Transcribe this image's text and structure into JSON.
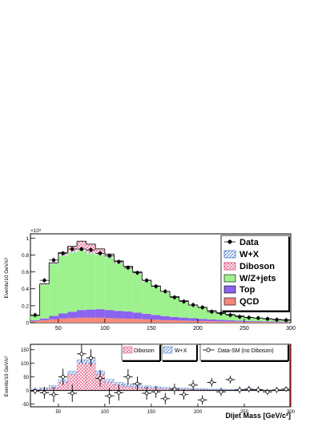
{
  "chart_data": [
    {
      "type": "bar",
      "stacked": true,
      "title": "",
      "xlabel": "",
      "ylabel": "Events/10 GeV/c²",
      "y_multiplier": "×10³",
      "xlim": [
        20,
        300
      ],
      "ylim": [
        0,
        1.05
      ],
      "x_ticks": [
        50,
        100,
        150,
        200,
        250,
        300
      ],
      "y_ticks": [
        0,
        0.2,
        0.4,
        0.6,
        0.8,
        1
      ],
      "y_tick_labels": [
        "0",
        "0.2",
        "0.4",
        "0.6",
        "0.8",
        "1"
      ],
      "bin_width": 10,
      "bin_centers": [
        25,
        35,
        45,
        55,
        65,
        75,
        85,
        95,
        105,
        115,
        125,
        135,
        145,
        155,
        165,
        175,
        185,
        195,
        205,
        215,
        225,
        235,
        245,
        255,
        265,
        275,
        285,
        295
      ],
      "series": [
        {
          "name": "QCD",
          "color": "#f5897a",
          "values": [
            0.02,
            0.03,
            0.04,
            0.05,
            0.055,
            0.06,
            0.06,
            0.06,
            0.055,
            0.05,
            0.048,
            0.045,
            0.04,
            0.035,
            0.03,
            0.028,
            0.025,
            0.022,
            0.02,
            0.018,
            0.015,
            0.013,
            0.012,
            0.01,
            0.009,
            0.008,
            0.007,
            0.006
          ]
        },
        {
          "name": "Top",
          "color": "#8a63ee",
          "values": [
            0.01,
            0.02,
            0.04,
            0.06,
            0.075,
            0.09,
            0.095,
            0.1,
            0.095,
            0.09,
            0.085,
            0.075,
            0.065,
            0.055,
            0.048,
            0.04,
            0.035,
            0.03,
            0.025,
            0.02,
            0.018,
            0.015,
            0.012,
            0.01,
            0.009,
            0.008,
            0.007,
            0.006
          ]
        },
        {
          "name": "W/Z+jets",
          "color": "#9df28d",
          "values": [
            0.05,
            0.4,
            0.61,
            0.68,
            0.7,
            0.7,
            0.66,
            0.64,
            0.62,
            0.56,
            0.51,
            0.46,
            0.38,
            0.33,
            0.28,
            0.23,
            0.19,
            0.15,
            0.13,
            0.1,
            0.08,
            0.065,
            0.052,
            0.04,
            0.035,
            0.03,
            0.024,
            0.02
          ]
        },
        {
          "name": "W+X",
          "color": "#4477cc",
          "pattern": "hatch-blue",
          "values": [
            0.003,
            0.005,
            0.008,
            0.01,
            0.012,
            0.013,
            0.013,
            0.012,
            0.011,
            0.01,
            0.009,
            0.008,
            0.007,
            0.006,
            0.005,
            0.004,
            0.004,
            0.003,
            0.003,
            0.002,
            0.002,
            0.002,
            0.002,
            0.001,
            0.001,
            0.001,
            0.001,
            0.001
          ]
        },
        {
          "name": "Diboson",
          "color": "#f7b3c4",
          "pattern": "dots-pink",
          "values": [
            0.002,
            0.005,
            0.01,
            0.03,
            0.06,
            0.1,
            0.1,
            0.06,
            0.03,
            0.02,
            0.015,
            0.012,
            0.01,
            0.008,
            0.007,
            0.006,
            0.005,
            0.004,
            0.004,
            0.003,
            0.003,
            0.002,
            0.002,
            0.002,
            0.001,
            0.001,
            0.001,
            0.001
          ]
        }
      ],
      "data": {
        "name": "Data",
        "x": [
          25,
          35,
          45,
          55,
          65,
          75,
          85,
          95,
          105,
          115,
          125,
          135,
          145,
          155,
          165,
          175,
          185,
          195,
          205,
          215,
          225,
          235,
          245,
          255,
          265,
          275,
          285,
          295
        ],
        "y": [
          0.09,
          0.5,
          0.74,
          0.82,
          0.87,
          0.87,
          0.86,
          0.82,
          0.79,
          0.72,
          0.65,
          0.59,
          0.5,
          0.43,
          0.37,
          0.3,
          0.25,
          0.21,
          0.18,
          0.13,
          0.11,
          0.09,
          0.07,
          0.06,
          0.055,
          0.045,
          0.035,
          0.03
        ]
      },
      "legend": {
        "placement": "top-right",
        "entries": [
          "Data",
          "W+X",
          "Diboson",
          "W/Z+jets",
          "Top",
          "QCD"
        ]
      },
      "grid": false
    },
    {
      "type": "bar",
      "title": "",
      "xlabel": "Dijet Mass [GeV/c²]",
      "ylabel": "Events/10 GeV/c²",
      "xlim": [
        20,
        300
      ],
      "ylim": [
        -60,
        170
      ],
      "x_ticks": [
        50,
        100,
        150,
        200,
        250,
        300
      ],
      "y_ticks": [
        -50,
        0,
        50,
        100,
        150
      ],
      "bin_width": 10,
      "bin_centers": [
        25,
        35,
        45,
        55,
        65,
        75,
        85,
        95,
        105,
        115,
        125,
        135,
        145,
        155,
        165,
        175,
        185,
        195,
        205,
        215,
        225,
        235,
        245,
        255,
        265,
        275,
        285,
        295
      ],
      "series": [
        {
          "name": "Diboson",
          "color": "#e8789a",
          "pattern": "dots-pink",
          "values": [
            2,
            5,
            10,
            30,
            60,
            100,
            100,
            60,
            30,
            20,
            15,
            12,
            10,
            8,
            7,
            6,
            5,
            4,
            4,
            3,
            3,
            2,
            2,
            2,
            1,
            1,
            1,
            1
          ]
        },
        {
          "name": "W+X",
          "color": "#4477cc",
          "pattern": "hatch-blue",
          "values": [
            3,
            5,
            8,
            10,
            12,
            13,
            13,
            12,
            11,
            10,
            9,
            8,
            7,
            6,
            5,
            4,
            4,
            3,
            3,
            2,
            2,
            2,
            2,
            1,
            1,
            1,
            1,
            1
          ]
        }
      ],
      "data": {
        "name": "Data-SM (no Diboson)",
        "x": [
          25,
          35,
          45,
          55,
          65,
          75,
          85,
          95,
          105,
          115,
          125,
          135,
          145,
          155,
          165,
          175,
          185,
          195,
          205,
          215,
          225,
          235,
          245,
          255,
          265,
          275,
          285,
          295
        ],
        "y": [
          -2,
          -8,
          -15,
          50,
          -10,
          135,
          120,
          45,
          -20,
          -8,
          50,
          25,
          -10,
          -5,
          -30,
          5,
          -15,
          20,
          -35,
          30,
          -5,
          40,
          2,
          5,
          3,
          -5,
          2,
          5
        ],
        "yerr": [
          12,
          22,
          28,
          30,
          32,
          33,
          32,
          31,
          30,
          29,
          28,
          26,
          24,
          22,
          21,
          20,
          19,
          18,
          17,
          16,
          15,
          14,
          13,
          12,
          12,
          11,
          11,
          10
        ]
      },
      "legend": {
        "placement": "top",
        "entries": [
          "Diboson",
          "W+X",
          "Data-SM (no Diboson)"
        ]
      },
      "grid": false
    }
  ]
}
